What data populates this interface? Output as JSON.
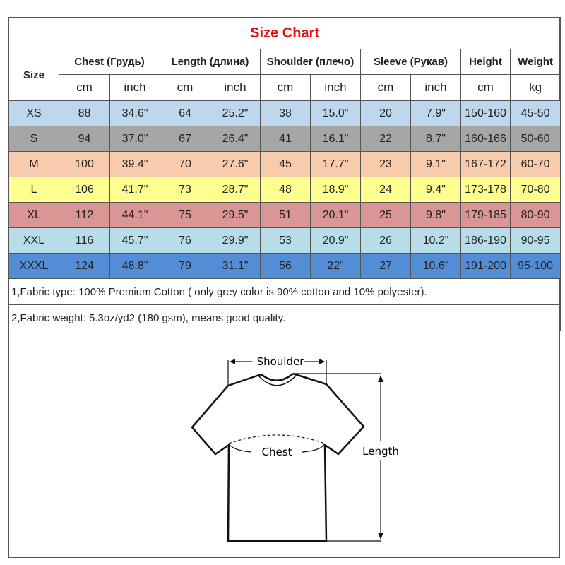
{
  "title": "Size Chart",
  "headers": {
    "size": "Size",
    "groups": [
      "Chest  (Грудь)",
      "Length (длина)",
      "Shoulder (плечо)",
      "Sleeve (Рукав)",
      "Height",
      "Weight"
    ],
    "units": [
      "cm",
      "inch",
      "cm",
      "inch",
      "cm",
      "inch",
      "cm",
      "inch",
      "cm",
      "kg"
    ]
  },
  "rows": [
    {
      "size": "XS",
      "color": "#bdd7ee",
      "values": [
        "88",
        "34.6\"",
        "64",
        "25.2\"",
        "38",
        "15.0\"",
        "20",
        "7.9\"",
        "150-160",
        "45-50"
      ]
    },
    {
      "size": "S",
      "color": "#a6a6a6",
      "values": [
        "94",
        "37.0\"",
        "67",
        "26.4\"",
        "41",
        "16.1\"",
        "22",
        "8.7\"",
        "160-166",
        "50-60"
      ]
    },
    {
      "size": "M",
      "color": "#f8cbad",
      "values": [
        "100",
        "39.4\"",
        "70",
        "27.6\"",
        "45",
        "17.7\"",
        "23",
        "9.1\"",
        "167-172",
        "60-70"
      ]
    },
    {
      "size": "L",
      "color": "#ffff8f",
      "values": [
        "106",
        "41.7\"",
        "73",
        "28.7\"",
        "48",
        "18.9\"",
        "24",
        "9.4\"",
        "173-178",
        "70-80"
      ]
    },
    {
      "size": "XL",
      "color": "#da9694",
      "values": [
        "112",
        "44.1\"",
        "75",
        "29.5\"",
        "51",
        "20.1\"",
        "25",
        "9.8\"",
        "179-185",
        "80-90"
      ]
    },
    {
      "size": "XXL",
      "color": "#b7dee8",
      "values": [
        "116",
        "45.7\"",
        "76",
        "29.9\"",
        "53",
        "20.9\"",
        "26",
        "10.2\"",
        "186-190",
        "90-95"
      ]
    },
    {
      "size": "XXXL",
      "color": "#538dd5",
      "values": [
        "124",
        "48.8\"",
        "79",
        "31.1\"",
        "56",
        "22\"",
        "27",
        "10.6\"",
        "191-200",
        "95-100"
      ]
    }
  ],
  "notes": [
    "1,Fabric type: 100% Premium Cotton ( only grey color is 90% cotton and 10% polyester).",
    "2,Fabric weight: 5.3oz/yd2 (180 gsm), means good quality."
  ],
  "diagram": {
    "shoulder": "Shoulder",
    "chest": "Chest",
    "length": "Length"
  }
}
